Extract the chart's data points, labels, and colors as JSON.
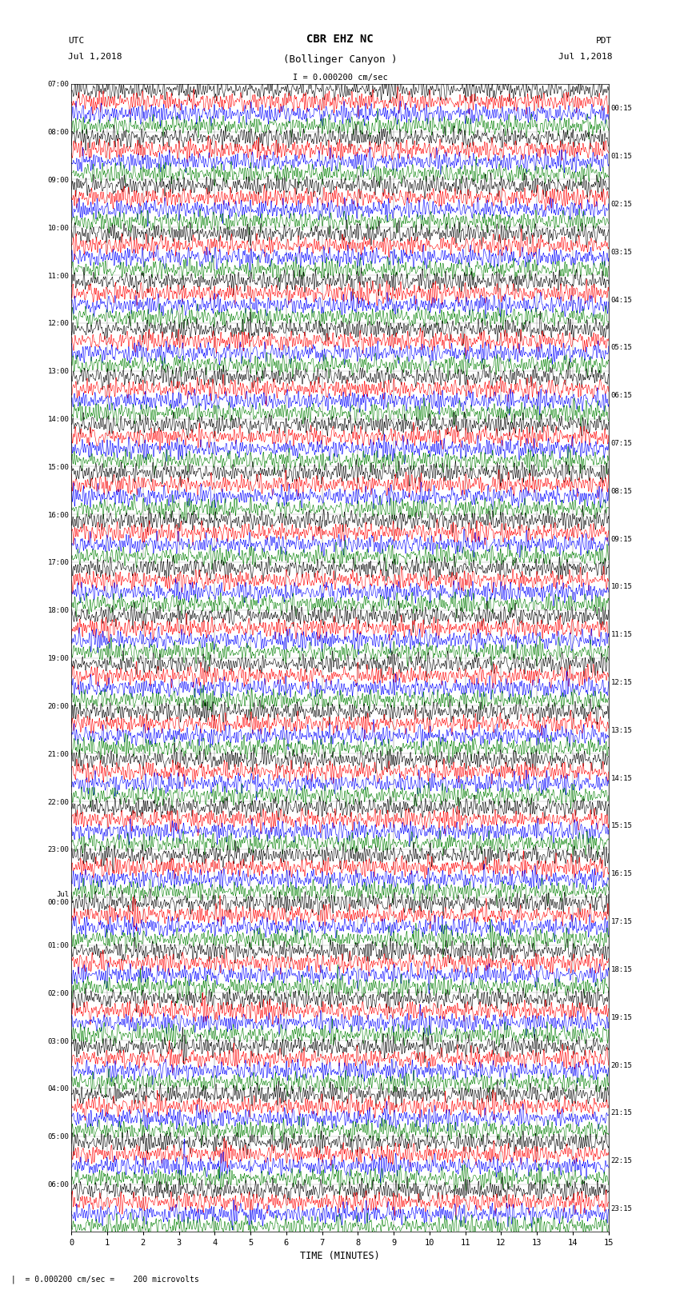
{
  "title_line1": "CBR EHZ NC",
  "title_line2": "(Bollinger Canyon )",
  "scale_text": "I = 0.000200 cm/sec",
  "left_label": "UTC",
  "left_date": "Jul 1,2018",
  "right_label": "PDT",
  "right_date": "Jul 1,2018",
  "xlabel": "TIME (MINUTES)",
  "bottom_note": " |  = 0.000200 cm/sec =    200 microvolts",
  "utc_rows": [
    "07:00",
    "08:00",
    "09:00",
    "10:00",
    "11:00",
    "12:00",
    "13:00",
    "14:00",
    "15:00",
    "16:00",
    "17:00",
    "18:00",
    "19:00",
    "20:00",
    "21:00",
    "22:00",
    "23:00",
    "Jul\n00:00",
    "01:00",
    "02:00",
    "03:00",
    "04:00",
    "05:00",
    "06:00"
  ],
  "pdt_labels": [
    "00:15",
    "01:15",
    "02:15",
    "03:15",
    "04:15",
    "05:15",
    "06:15",
    "07:15",
    "08:15",
    "09:15",
    "10:15",
    "11:15",
    "12:15",
    "13:15",
    "14:15",
    "15:15",
    "16:15",
    "17:15",
    "18:15",
    "19:15",
    "20:15",
    "21:15",
    "22:15",
    "23:15"
  ],
  "n_rows": 24,
  "traces_per_row": 4,
  "trace_colors": [
    "black",
    "red",
    "blue",
    "green"
  ],
  "bg_color": "white",
  "fig_width": 8.5,
  "fig_height": 16.13,
  "xmin": 0,
  "xmax": 15,
  "noise_seed": 42,
  "row_amplitudes": [
    0.12,
    0.12,
    0.15,
    0.15,
    0.13,
    0.12,
    0.12,
    0.14,
    0.15,
    0.16,
    0.14,
    0.13,
    0.13,
    0.14,
    0.16,
    0.18,
    0.2,
    0.35,
    0.4,
    0.38,
    0.36,
    0.55,
    0.65,
    0.6
  ]
}
